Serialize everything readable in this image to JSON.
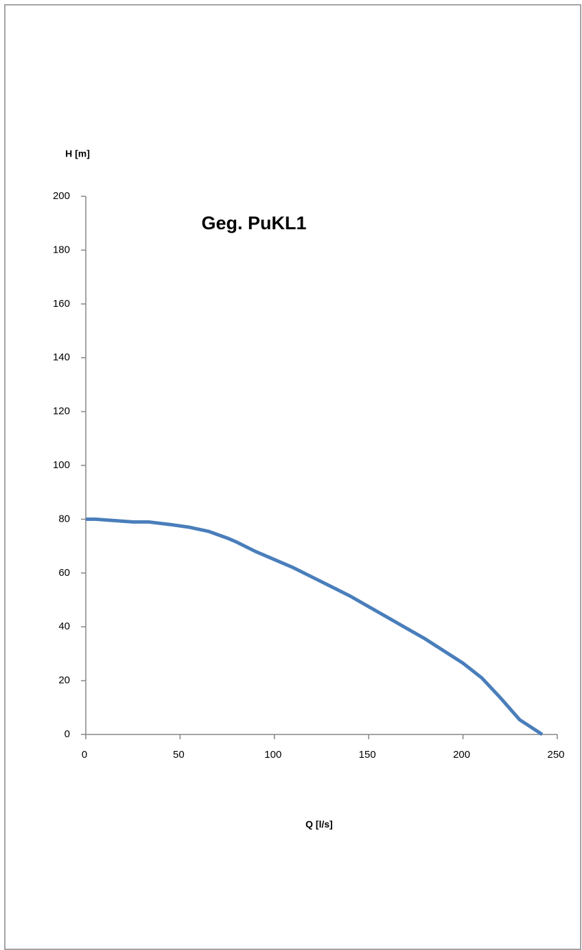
{
  "chart_data": {
    "type": "line",
    "title": "Geg. PuKL1",
    "x_label": "Q [l/s]",
    "y_label": "H [m]",
    "x": [
      0,
      5,
      15,
      25,
      33,
      45,
      55,
      65,
      75,
      80,
      90,
      100,
      110,
      120,
      130,
      140,
      150,
      160,
      170,
      180,
      190,
      200,
      210,
      220,
      230,
      242
    ],
    "series": [
      {
        "color": "#4a7ebb",
        "values": [
          80,
          80,
          79.5,
          79,
          79,
          78,
          77,
          75.5,
          73,
          71.5,
          68,
          65,
          62,
          58.5,
          55,
          51.5,
          47.5,
          43.5,
          39.5,
          35.5,
          31,
          26.5,
          21,
          13.5,
          5.5,
          0
        ]
      }
    ],
    "xlim": [
      0,
      250
    ],
    "xticks": [
      0,
      50,
      100,
      150,
      200,
      250
    ],
    "ylim": [
      0,
      200
    ],
    "yticks": [
      0,
      20,
      40,
      60,
      80,
      100,
      120,
      140,
      160,
      180,
      200
    ],
    "grid": false
  }
}
